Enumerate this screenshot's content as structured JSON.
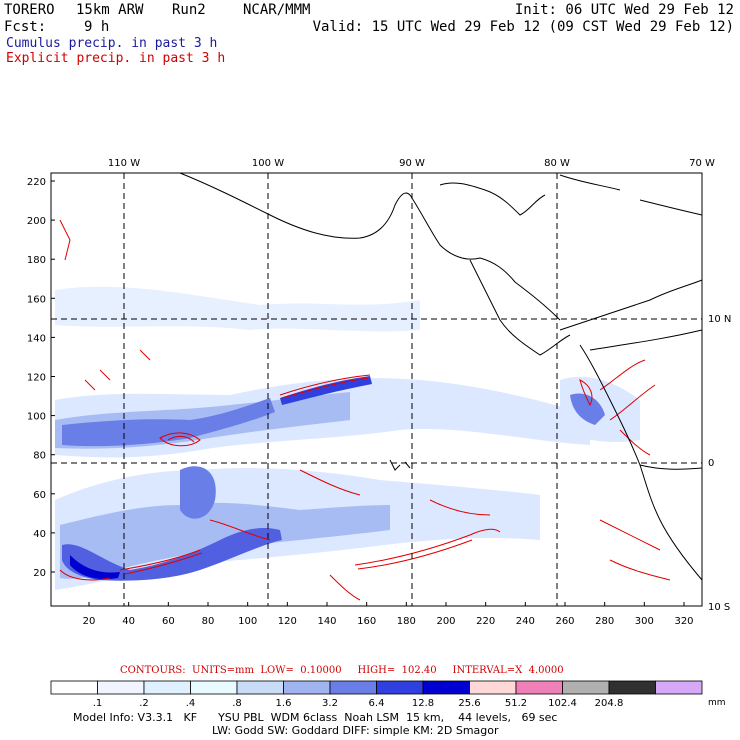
{
  "header": {
    "model": "TORERO",
    "resolution": "15km ARW",
    "run": "Run2",
    "org": "NCAR/MMM",
    "init": "Init: 06 UTC Wed 29 Feb 12",
    "fcst_label": "Fcst:",
    "fcst_value": "9 h",
    "valid": "Valid: 15 UTC Wed 29 Feb 12 (09 CST Wed 29 Feb 12)",
    "line1": "Cumulus precip. in past 3 h",
    "line2": "Explicit precip. in past 3 h",
    "line1_color": "#1a1aa0",
    "line2_color": "#d00000"
  },
  "map": {
    "lon_labels": [
      "110 W",
      "100 W",
      "90 W",
      "80 W",
      "70 W"
    ],
    "lat_labels": [
      "10 N",
      "0",
      "10 S"
    ],
    "y_ticks": [
      "220",
      "200",
      "180",
      "160",
      "140",
      "120",
      "100",
      "80",
      "60",
      "40",
      "20"
    ],
    "x_ticks": [
      "20",
      "40",
      "60",
      "80",
      "100",
      "120",
      "140",
      "160",
      "180",
      "200",
      "220",
      "240",
      "260",
      "280",
      "300",
      "320"
    ]
  },
  "contours_line": {
    "label": "CONTOURS:",
    "units": "UNITS=mm",
    "low": "LOW=  0.10000",
    "high": "HIGH=  102.40",
    "interval": "INTERVAL=X  4.0000"
  },
  "colorbar": {
    "labels": [
      ".1",
      ".2",
      ".4",
      ".8",
      "1.6",
      "3.2",
      "6.4",
      "12.8",
      "25.6",
      "51.2",
      "102.4",
      "204.8"
    ],
    "unit": "mm",
    "colors": [
      "#ffffff",
      "#f0f5ff",
      "#dff0ff",
      "#e8fbff",
      "#c8dcf8",
      "#a0b4f0",
      "#6a7ee8",
      "#3040e0",
      "#0000d0",
      "#ffd8d8",
      "#f080b8",
      "#b0b0b0",
      "#303030",
      "#d8a8f8"
    ]
  },
  "model_info": {
    "line1": "Model Info: V3.3.1   KF      YSU PBL  WDM 6class  Noah LSM  15 km,    44 levels,   69 sec",
    "line2": "LW: Godd SW: Goddard DIFF: simple KM: 2D Smagor"
  }
}
